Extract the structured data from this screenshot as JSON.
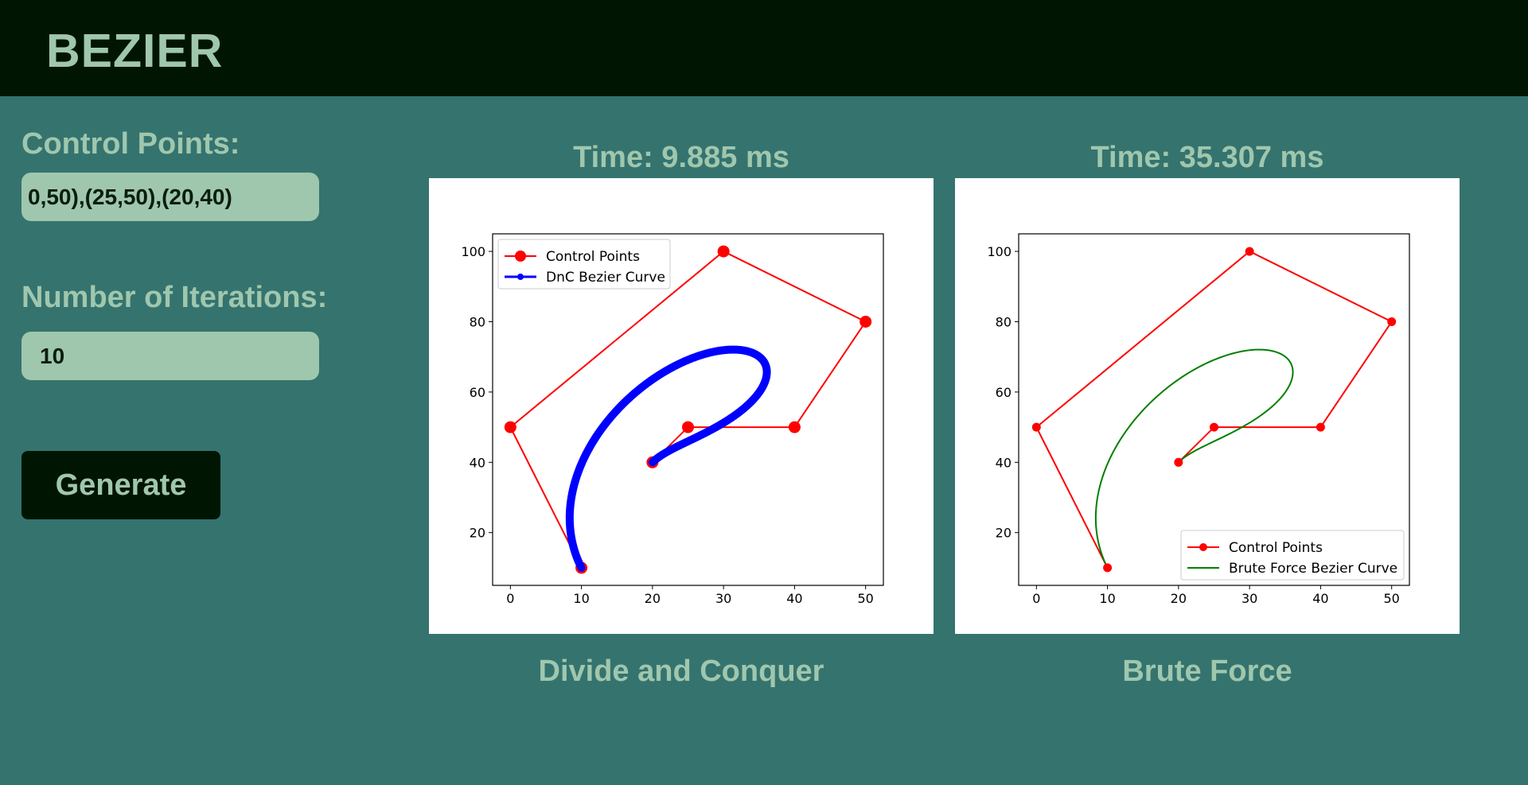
{
  "header": {
    "title": "BEZIER"
  },
  "sidebar": {
    "control_points_label": "Control Points:",
    "control_points_value": "0,50),(25,50),(20,40)",
    "iterations_label": "Number of Iterations:",
    "iterations_value": "10",
    "generate_label": "Generate"
  },
  "results": {
    "dnc": {
      "time": "Time: 9.885 ms",
      "method": "Divide and Conquer"
    },
    "brute": {
      "time": "Time: 35.307 ms",
      "method": "Brute Force"
    }
  },
  "colors": {
    "background": "#35736e",
    "header": "#011503",
    "accent_text": "#9fc7ae",
    "control_points": "#ff0000",
    "dnc_curve": "#0000ff",
    "brute_curve": "#008000"
  },
  "chart_data": [
    {
      "type": "line",
      "title": "",
      "xlabel": "",
      "ylabel": "",
      "xlim": [
        -2.5,
        52.5
      ],
      "ylim": [
        5,
        105
      ],
      "xticks": [
        0,
        10,
        20,
        30,
        40,
        50
      ],
      "yticks": [
        20,
        40,
        60,
        80,
        100
      ],
      "grid": false,
      "legend_position": "upper-left",
      "series": [
        {
          "name": "Control Points",
          "color": "#ff0000",
          "marker": "circle-large",
          "points": [
            [
              20,
              40
            ],
            [
              25,
              50
            ],
            [
              40,
              50
            ],
            [
              50,
              80
            ],
            [
              30,
              100
            ],
            [
              0,
              50
            ],
            [
              10,
              10
            ]
          ]
        },
        {
          "name": "DnC Bezier Curve",
          "color": "#0000ff",
          "marker": "circle-small",
          "style": "thick-dotted",
          "bezier_of": "Control Points",
          "samples": 1025
        }
      ]
    },
    {
      "type": "line",
      "title": "",
      "xlabel": "",
      "ylabel": "",
      "xlim": [
        -2.5,
        52.5
      ],
      "ylim": [
        5,
        105
      ],
      "xticks": [
        0,
        10,
        20,
        30,
        40,
        50
      ],
      "yticks": [
        20,
        40,
        60,
        80,
        100
      ],
      "grid": false,
      "legend_position": "lower-right",
      "series": [
        {
          "name": "Control Points",
          "color": "#ff0000",
          "marker": "circle-small",
          "points": [
            [
              20,
              40
            ],
            [
              25,
              50
            ],
            [
              40,
              50
            ],
            [
              50,
              80
            ],
            [
              30,
              100
            ],
            [
              0,
              50
            ],
            [
              10,
              10
            ]
          ]
        },
        {
          "name": "Brute Force Bezier Curve",
          "color": "#008000",
          "marker": "none",
          "style": "thin",
          "bezier_of": "Control Points",
          "samples": 200
        }
      ]
    }
  ]
}
